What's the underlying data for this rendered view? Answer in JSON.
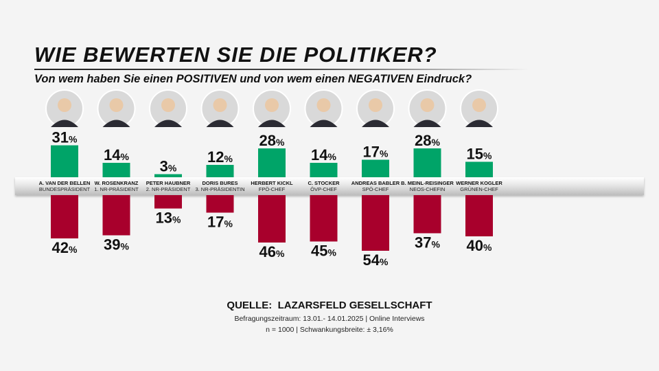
{
  "title": "WIE BEWERTEN SIE DIE POLITIKER?",
  "subtitle": "Von wem haben Sie einen POSITIVEN und von wem einen NEGATIVEN Eindruck?",
  "colors": {
    "positive": "#00a468",
    "negative": "#a8002c",
    "background": "#f4f4f4"
  },
  "chart_data": {
    "type": "bar",
    "title": "WIE BEWERTEN SIE DIE POLITIKER?",
    "subtitle": "Von wem haben Sie einen POSITIVEN und von wem einen NEGATIVEN Eindruck?",
    "unit": "%",
    "categories": [
      "A. VAN DER BELLEN",
      "W. ROSENKRANZ",
      "PETER HAUBNER",
      "DORIS BURES",
      "HERBERT KICKL",
      "C. STOCKER",
      "ANDREAS BABLER",
      "B. MEINL-REISINGER",
      "WERNER KOGLER"
    ],
    "roles": [
      "BUNDESPRÄSIDENT",
      "1. NR-PRÄSIDENT",
      "2. NR-PRÄSIDENT",
      "3. NR-PRÄSIDENTIN",
      "FPÖ-CHEF",
      "ÖVP-CHEF",
      "SPÖ-CHEF",
      "NEOS-CHEFIN",
      "GRÜNEN-CHEF"
    ],
    "series": [
      {
        "name": "positiv",
        "values": [
          31,
          14,
          3,
          12,
          28,
          14,
          17,
          28,
          15
        ]
      },
      {
        "name": "negativ",
        "values": [
          42,
          39,
          13,
          17,
          46,
          45,
          54,
          37,
          40
        ]
      }
    ],
    "ylim": [
      0,
      60
    ]
  },
  "source": {
    "label": "QUELLE:",
    "name": "LAZARSFELD GESELLSCHAFT",
    "line1": "Befragungszeitraum:  13.01.- 14.01.2025  | Online Interviews",
    "line2": "n = 1000 |  Schwankungsbreite: ± 3,16%"
  }
}
